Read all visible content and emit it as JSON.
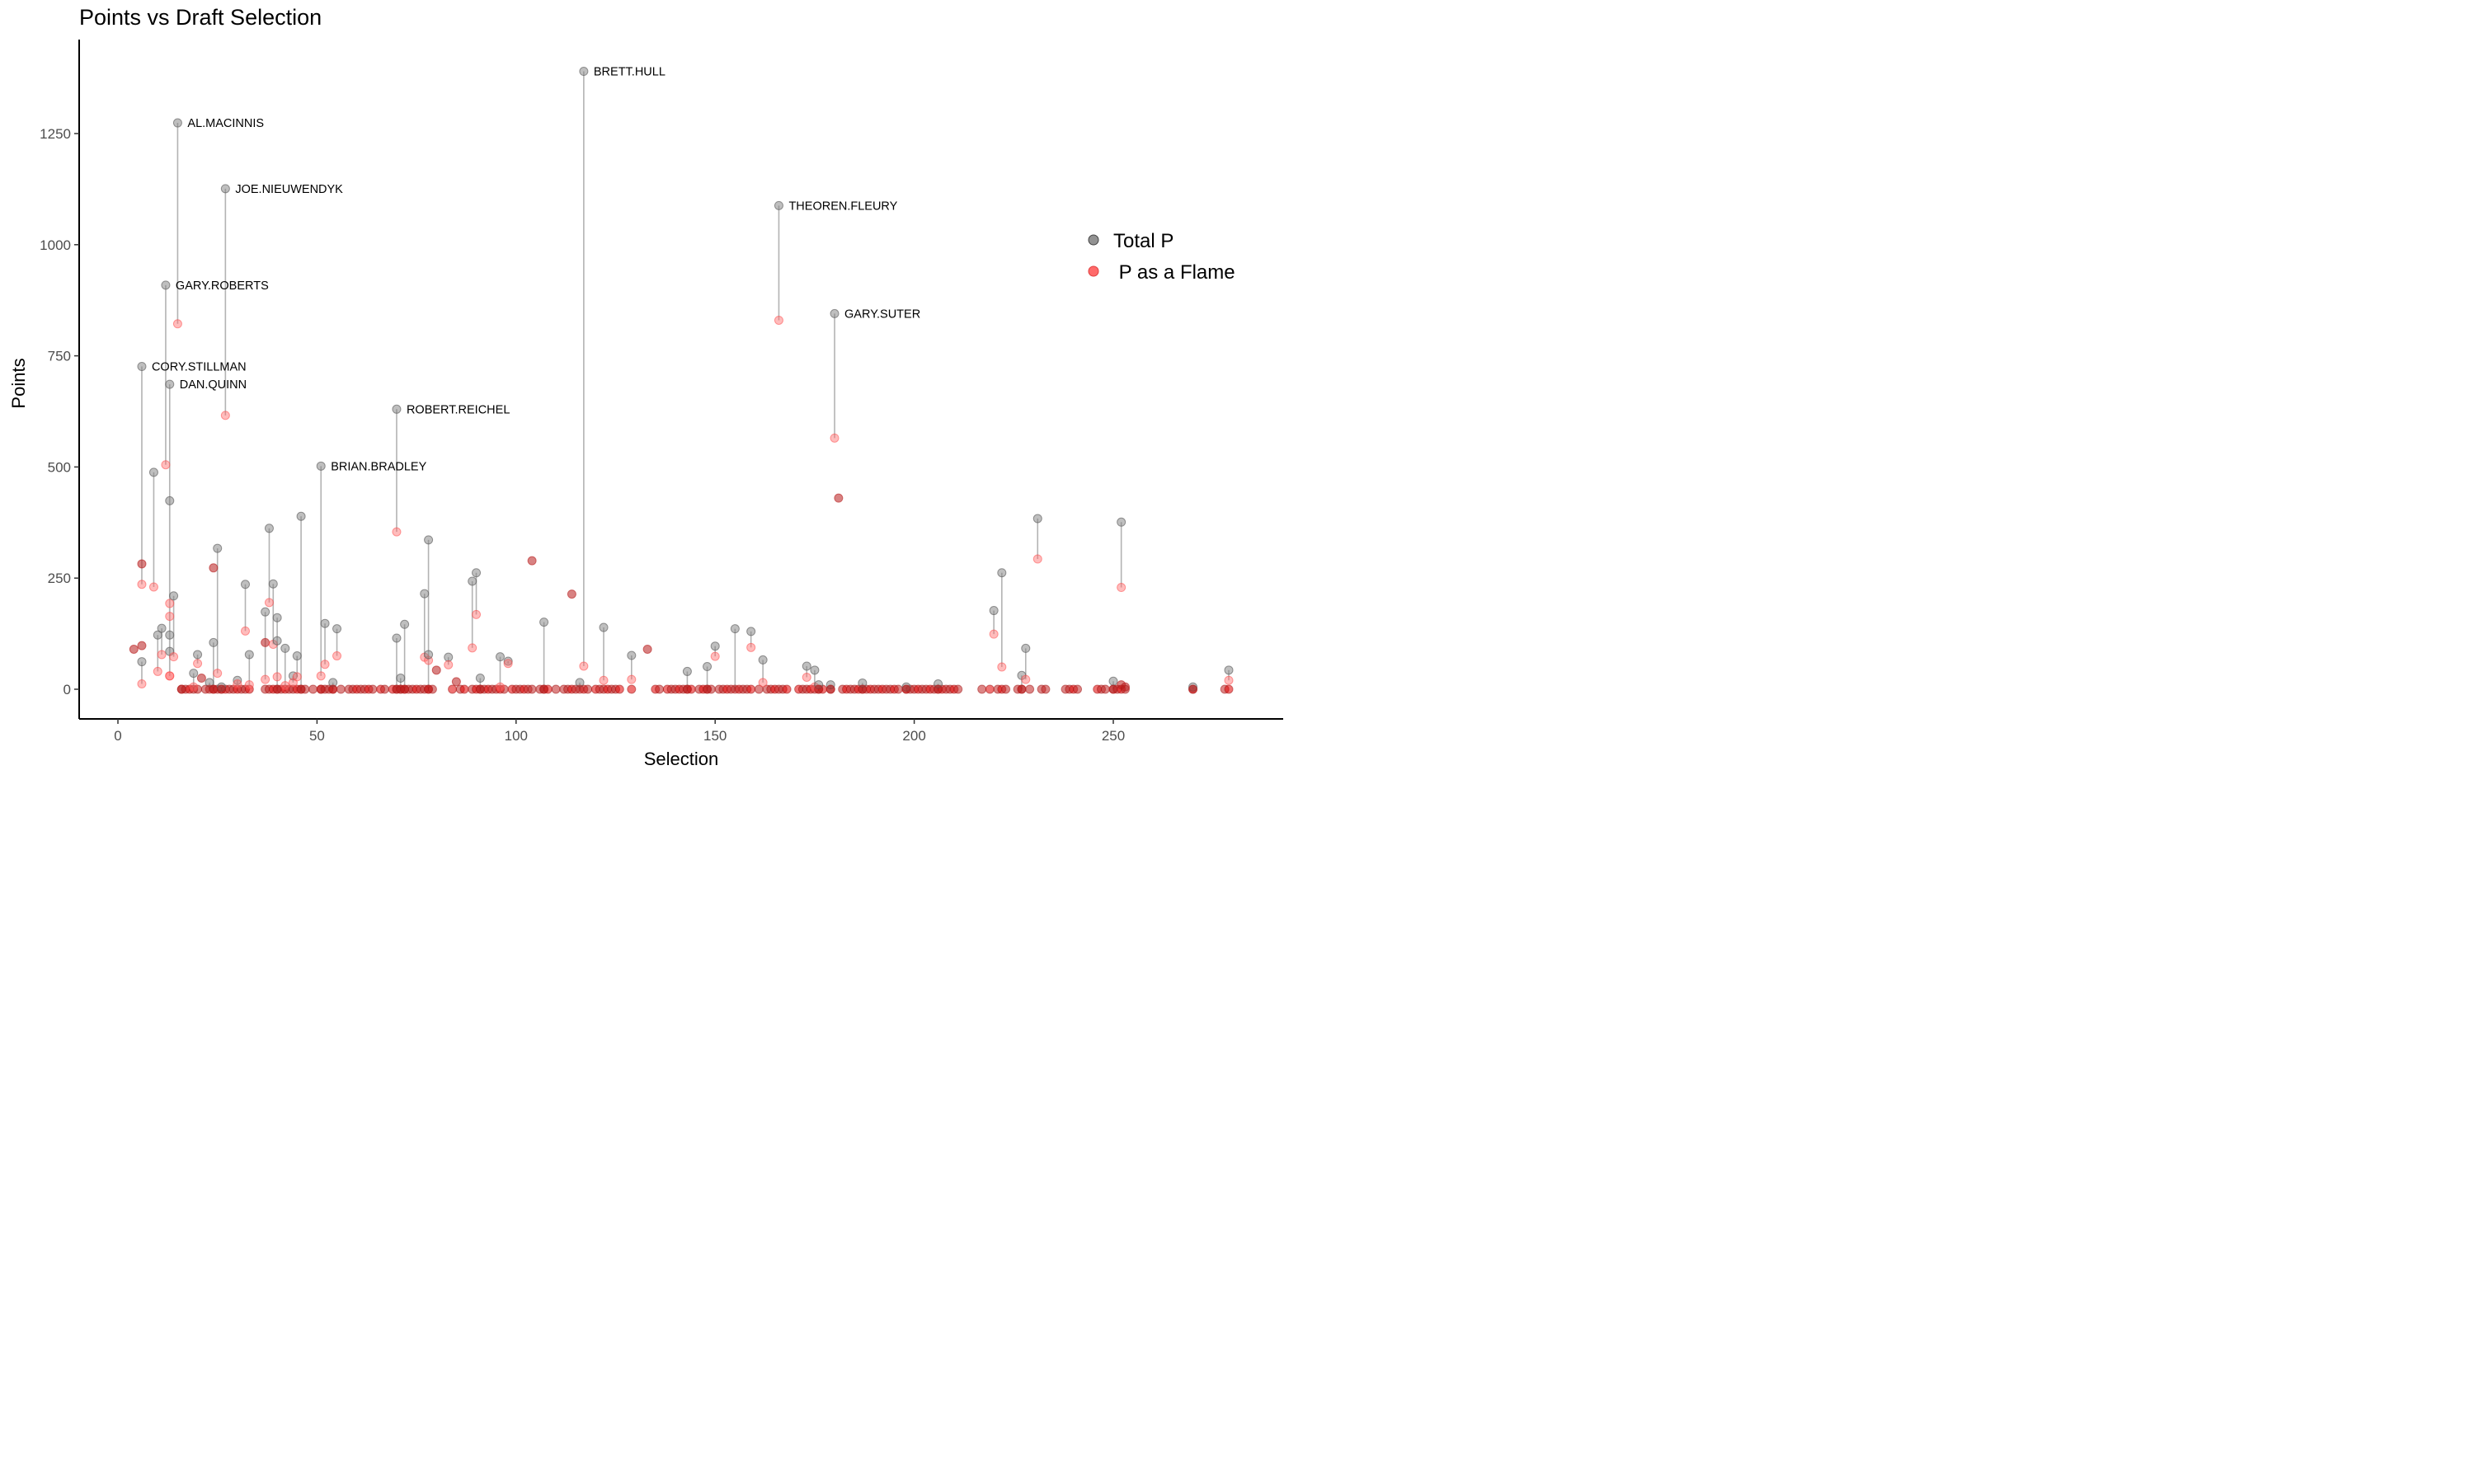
{
  "chart_data": {
    "type": "scatter",
    "title": "Points vs Draft Selection",
    "xlabel": "Selection",
    "ylabel": "Points",
    "xlim": [
      -8,
      289
    ],
    "ylim": [
      -70,
      1450
    ],
    "x_ticks": [
      0,
      50,
      100,
      150,
      200,
      250
    ],
    "y_ticks": [
      0,
      250,
      500,
      750,
      1000,
      1250
    ],
    "grid": false,
    "legend_position": "right",
    "legend": [
      {
        "name": "Total P",
        "color": "#7f7f7f"
      },
      {
        "name": " P as a Flame",
        "color": "#ff5050"
      }
    ],
    "colors": {
      "total": "#808080",
      "flame": "#ff6a6a",
      "flame_dark": "#b81c1c",
      "segment": "#b3b3b3"
    },
    "labeled_players": [
      {
        "name": "BRETT.HULL",
        "selection": 117,
        "total": 1390,
        "flame": 52
      },
      {
        "name": "AL.MACINNIS",
        "selection": 15,
        "total": 1274,
        "flame": 822
      },
      {
        "name": "JOE.NIEUWENDYK",
        "selection": 27,
        "total": 1126,
        "flame": 616
      },
      {
        "name": "THEOREN.FLEURY",
        "selection": 166,
        "total": 1088,
        "flame": 830
      },
      {
        "name": "GARY.ROBERTS",
        "selection": 12,
        "total": 909,
        "flame": 505
      },
      {
        "name": "GARY.SUTER",
        "selection": 180,
        "total": 845,
        "flame": 565
      },
      {
        "name": "CORY.STILLMAN",
        "selection": 6,
        "total": 726,
        "flame": 236
      },
      {
        "name": "DAN.QUINN",
        "selection": 13,
        "total": 686,
        "flame": 30
      },
      {
        "name": "ROBERT.REICHEL",
        "selection": 70,
        "total": 630,
        "flame": 354
      },
      {
        "name": "BRIAN.BRADLEY",
        "selection": 51,
        "total": 502,
        "flame": 30
      }
    ],
    "pairs": [
      {
        "selection": 6,
        "total": 62,
        "flame": 12
      },
      {
        "selection": 6,
        "total": 282,
        "flame": 282
      },
      {
        "selection": 6,
        "total": 98,
        "flame": 98
      },
      {
        "selection": 4,
        "total": 90,
        "flame": 90
      },
      {
        "selection": 9,
        "total": 488,
        "flame": 230
      },
      {
        "selection": 10,
        "total": 122,
        "flame": 40
      },
      {
        "selection": 11,
        "total": 137,
        "flame": 78
      },
      {
        "selection": 13,
        "total": 424,
        "flame": 164
      },
      {
        "selection": 13,
        "total": 122,
        "flame": 30
      },
      {
        "selection": 13,
        "total": 85,
        "flame": 193
      },
      {
        "selection": 14,
        "total": 210,
        "flame": 73
      },
      {
        "selection": 16,
        "total": 0,
        "flame": 0
      },
      {
        "selection": 19,
        "total": 36,
        "flame": 5
      },
      {
        "selection": 20,
        "total": 78,
        "flame": 58
      },
      {
        "selection": 21,
        "total": 25,
        "flame": 25
      },
      {
        "selection": 23,
        "total": 15,
        "flame": 0
      },
      {
        "selection": 24,
        "total": 105,
        "flame": 0
      },
      {
        "selection": 24,
        "total": 273,
        "flame": 273
      },
      {
        "selection": 25,
        "total": 317,
        "flame": 36
      },
      {
        "selection": 26,
        "total": 5,
        "flame": 0
      },
      {
        "selection": 30,
        "total": 20,
        "flame": 12
      },
      {
        "selection": 32,
        "total": 236,
        "flame": 131
      },
      {
        "selection": 33,
        "total": 78,
        "flame": 10
      },
      {
        "selection": 37,
        "total": 174,
        "flame": 22
      },
      {
        "selection": 37,
        "total": 105,
        "flame": 105
      },
      {
        "selection": 38,
        "total": 362,
        "flame": 195
      },
      {
        "selection": 39,
        "total": 237,
        "flame": 101
      },
      {
        "selection": 40,
        "total": 161,
        "flame": 28
      },
      {
        "selection": 40,
        "total": 109,
        "flame": 0
      },
      {
        "selection": 42,
        "total": 92,
        "flame": 8
      },
      {
        "selection": 44,
        "total": 30,
        "flame": 15
      },
      {
        "selection": 45,
        "total": 75,
        "flame": 28
      },
      {
        "selection": 46,
        "total": 389,
        "flame": 0
      },
      {
        "selection": 51,
        "total": 0,
        "flame": 0
      },
      {
        "selection": 52,
        "total": 148,
        "flame": 56
      },
      {
        "selection": 54,
        "total": 15,
        "flame": 0
      },
      {
        "selection": 55,
        "total": 136,
        "flame": 75
      },
      {
        "selection": 70,
        "total": 115,
        "flame": 0
      },
      {
        "selection": 71,
        "total": 25,
        "flame": 0
      },
      {
        "selection": 72,
        "total": 146,
        "flame": 0
      },
      {
        "selection": 77,
        "total": 215,
        "flame": 72
      },
      {
        "selection": 78,
        "total": 336,
        "flame": 65
      },
      {
        "selection": 78,
        "total": 78,
        "flame": 0
      },
      {
        "selection": 80,
        "total": 43,
        "flame": 43
      },
      {
        "selection": 83,
        "total": 72,
        "flame": 55
      },
      {
        "selection": 85,
        "total": 17,
        "flame": 17
      },
      {
        "selection": 89,
        "total": 243,
        "flame": 93
      },
      {
        "selection": 90,
        "total": 262,
        "flame": 168
      },
      {
        "selection": 91,
        "total": 25,
        "flame": 0
      },
      {
        "selection": 96,
        "total": 73,
        "flame": 5
      },
      {
        "selection": 98,
        "total": 63,
        "flame": 58
      },
      {
        "selection": 104,
        "total": 289,
        "flame": 289
      },
      {
        "selection": 107,
        "total": 151,
        "flame": 0
      },
      {
        "selection": 114,
        "total": 214,
        "flame": 214
      },
      {
        "selection": 116,
        "total": 15,
        "flame": 0
      },
      {
        "selection": 122,
        "total": 139,
        "flame": 20
      },
      {
        "selection": 129,
        "total": 76,
        "flame": 22
      },
      {
        "selection": 133,
        "total": 90,
        "flame": 90
      },
      {
        "selection": 143,
        "total": 40,
        "flame": 0
      },
      {
        "selection": 148,
        "total": 51,
        "flame": 0
      },
      {
        "selection": 150,
        "total": 97,
        "flame": 74
      },
      {
        "selection": 155,
        "total": 136,
        "flame": 0
      },
      {
        "selection": 159,
        "total": 130,
        "flame": 94
      },
      {
        "selection": 162,
        "total": 66,
        "flame": 15
      },
      {
        "selection": 173,
        "total": 52,
        "flame": 27
      },
      {
        "selection": 175,
        "total": 43,
        "flame": 5
      },
      {
        "selection": 176,
        "total": 10,
        "flame": 0
      },
      {
        "selection": 179,
        "total": 10,
        "flame": 0
      },
      {
        "selection": 181,
        "total": 430,
        "flame": 430
      },
      {
        "selection": 187,
        "total": 14,
        "flame": 0
      },
      {
        "selection": 198,
        "total": 5,
        "flame": 0
      },
      {
        "selection": 206,
        "total": 12,
        "flame": 0
      },
      {
        "selection": 220,
        "total": 177,
        "flame": 124
      },
      {
        "selection": 222,
        "total": 262,
        "flame": 50
      },
      {
        "selection": 227,
        "total": 31,
        "flame": 0
      },
      {
        "selection": 228,
        "total": 92,
        "flame": 22
      },
      {
        "selection": 231,
        "total": 384,
        "flame": 293
      },
      {
        "selection": 250,
        "total": 18,
        "flame": 0
      },
      {
        "selection": 252,
        "total": 376,
        "flame": 229
      },
      {
        "selection": 252,
        "total": 10,
        "flame": 10
      },
      {
        "selection": 253,
        "total": 5,
        "flame": 5
      },
      {
        "selection": 270,
        "total": 5,
        "flame": 0
      },
      {
        "selection": 279,
        "total": 43,
        "flame": 20
      }
    ],
    "zero_selections": [
      16,
      17,
      18,
      19,
      20,
      22,
      24,
      25,
      26,
      27,
      28,
      29,
      30,
      31,
      32,
      33,
      37,
      38,
      39,
      40,
      41,
      42,
      43,
      44,
      45,
      46,
      47,
      49,
      51,
      52,
      53,
      54,
      56,
      58,
      59,
      60,
      61,
      62,
      63,
      64,
      66,
      67,
      69,
      70,
      71,
      72,
      73,
      74,
      75,
      76,
      77,
      78,
      79,
      84,
      86,
      87,
      89,
      90,
      91,
      92,
      93,
      94,
      95,
      96,
      97,
      99,
      100,
      101,
      102,
      103,
      104,
      106,
      107,
      108,
      110,
      112,
      113,
      114,
      115,
      117,
      118,
      120,
      121,
      122,
      123,
      124,
      125,
      126,
      129,
      135,
      136,
      138,
      139,
      140,
      141,
      142,
      143,
      144,
      146,
      147,
      148,
      149,
      151,
      152,
      153,
      154,
      156,
      157,
      158,
      159,
      161,
      163,
      164,
      165,
      166,
      167,
      168,
      171,
      172,
      173,
      174,
      175,
      176,
      177,
      179,
      182,
      183,
      184,
      185,
      186,
      187,
      188,
      189,
      190,
      191,
      192,
      193,
      194,
      195,
      196,
      198,
      199,
      200,
      201,
      202,
      203,
      204,
      205,
      206,
      207,
      208,
      209,
      210,
      211,
      217,
      219,
      221,
      222,
      223,
      226,
      227,
      229,
      232,
      233,
      238,
      239,
      240,
      241,
      246,
      247,
      248,
      250,
      251,
      252,
      253,
      270,
      278,
      279
    ]
  }
}
